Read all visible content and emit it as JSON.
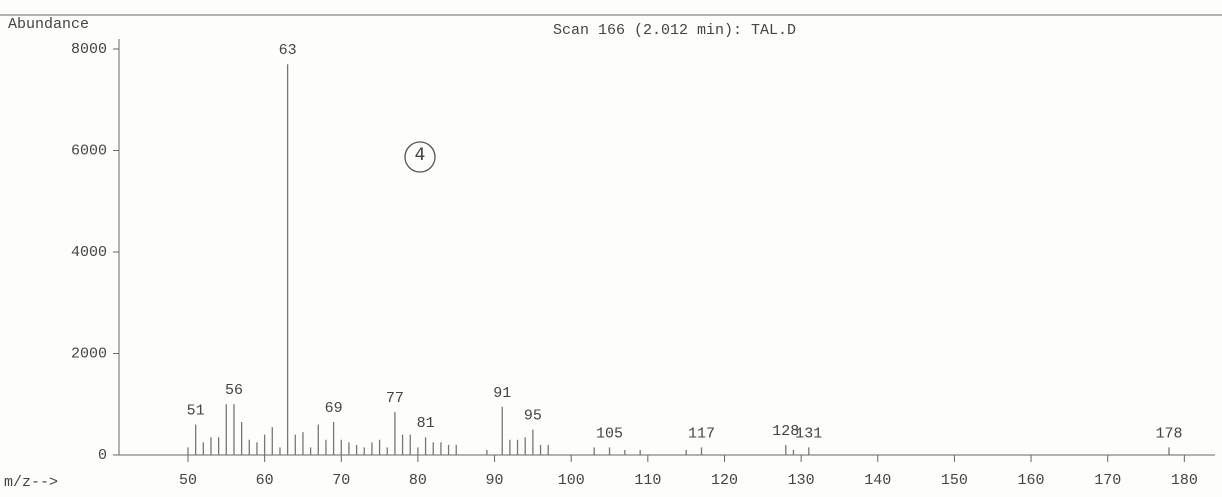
{
  "chart_data": {
    "type": "stick",
    "title": "Scan 166 (2.012 min): TAL.D",
    "y_label": "Abundance",
    "x_label": "m/z-->",
    "annotation": "4",
    "x": [
      50,
      51,
      52,
      53,
      54,
      55,
      56,
      57,
      58,
      59,
      60,
      61,
      62,
      63,
      64,
      65,
      66,
      67,
      68,
      69,
      70,
      71,
      72,
      73,
      74,
      75,
      76,
      77,
      78,
      79,
      80,
      81,
      82,
      83,
      84,
      85,
      89,
      91,
      92,
      93,
      94,
      95,
      96,
      97,
      103,
      105,
      107,
      109,
      115,
      117,
      128,
      129,
      131,
      178
    ],
    "values": [
      150,
      600,
      250,
      350,
      350,
      1000,
      1000,
      650,
      300,
      250,
      400,
      550,
      150,
      7700,
      400,
      450,
      150,
      600,
      300,
      650,
      300,
      250,
      200,
      150,
      250,
      300,
      150,
      850,
      400,
      400,
      150,
      350,
      250,
      250,
      200,
      200,
      100,
      950,
      300,
      300,
      350,
      500,
      200,
      200,
      150,
      150,
      100,
      100,
      100,
      150,
      200,
      100,
      150,
      150
    ],
    "peak_labels": [
      51,
      56,
      63,
      69,
      77,
      81,
      91,
      95,
      105,
      117,
      128,
      131,
      178
    ],
    "color": "#777777",
    "xlim": [
      41,
      184
    ],
    "ylim": [
      0,
      8000
    ],
    "xticks": [
      50,
      60,
      70,
      80,
      90,
      100,
      110,
      120,
      130,
      140,
      150,
      160,
      170,
      180
    ],
    "yticks": [
      0,
      2000,
      4000,
      6000,
      8000
    ]
  }
}
